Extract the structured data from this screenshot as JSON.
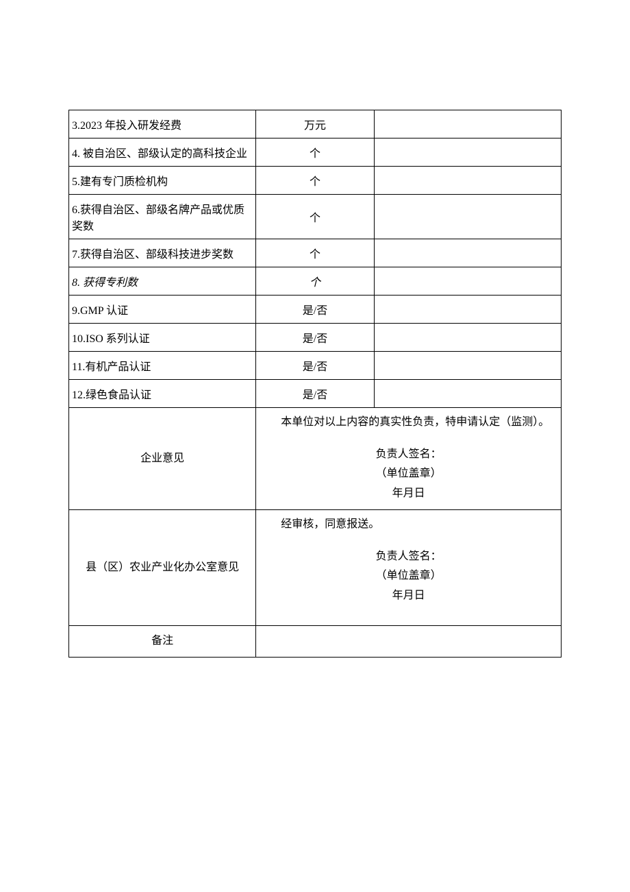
{
  "table": {
    "rows": [
      {
        "label": "3.2023 年投入研发经费",
        "unit": "万元",
        "value": "",
        "italic": false
      },
      {
        "label": "4. 被自治区、部级认定的高科技企业",
        "unit": "个",
        "value": "",
        "italic": false
      },
      {
        "label": "5.建有专门质检机构",
        "unit": "个",
        "value": "",
        "italic": false
      },
      {
        "label": "6.获得自治区、部级名牌产品或优质奖数",
        "unit": "个",
        "value": "",
        "italic": false
      },
      {
        "label": "7.获得自治区、部级科技进步奖数",
        "unit": "个",
        "value": "",
        "italic": false
      },
      {
        "label": "8. 获得专利数",
        "unit": "个",
        "value": "",
        "italic": true
      },
      {
        "label": "9.GMP 认证",
        "unit": "是/否",
        "value": "",
        "italic": false
      },
      {
        "label": "10.ISO 系列认证",
        "unit": "是/否",
        "value": "",
        "italic": false
      },
      {
        "label": "11.有机产品认证",
        "unit": "是/否",
        "value": "",
        "italic": false
      },
      {
        "label": "12.绿色食品认证",
        "unit": "是/否",
        "value": "",
        "italic": false
      }
    ]
  },
  "enterprise_opinion": {
    "label": "企业意见",
    "declaration": "本单位对以上内容的真实性负责，特申请认定（监测）。",
    "sig_label": "负责人签名：",
    "seal_label": "（单位盖章）",
    "date_label": "年月日"
  },
  "county_opinion": {
    "label": "县（区）农业产业化办公室意见",
    "declaration": "经审核，同意报送。",
    "sig_label": "负责人签名：",
    "seal_label": "（单位盖章）",
    "date_label": "年月日"
  },
  "remark": {
    "label": "备注",
    "content": ""
  },
  "style": {
    "font_family": "SimSun",
    "font_size_pt": 12,
    "text_color": "#000000",
    "border_color": "#000000",
    "background_color": "#ffffff"
  }
}
